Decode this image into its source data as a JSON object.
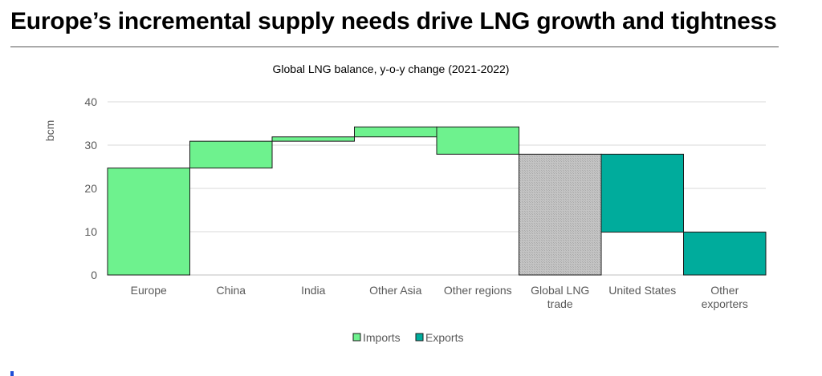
{
  "page": {
    "title": "Europe’s incremental supply needs drive LNG growth and tightness"
  },
  "chart_data": {
    "type": "waterfall",
    "title": "Global LNG balance, y-o-y change (2021-2022)",
    "ylabel": "bcm",
    "xlabel": "",
    "ylim": [
      0,
      40
    ],
    "yticks": [
      0,
      10,
      20,
      30,
      40
    ],
    "grid": true,
    "legend_position": "bottom-center",
    "categories": [
      {
        "label": [
          "Europe"
        ],
        "kind": "increase",
        "series": "Imports",
        "value": 24.7,
        "base": 0
      },
      {
        "label": [
          "China"
        ],
        "kind": "increase",
        "series": "Imports",
        "value": 6.2,
        "base": 24.7
      },
      {
        "label": [
          "India"
        ],
        "kind": "increase",
        "series": "Imports",
        "value": 1.0,
        "base": 30.9
      },
      {
        "label": [
          "Other Asia"
        ],
        "kind": "increase",
        "series": "Imports",
        "value": 2.3,
        "base": 31.9
      },
      {
        "label": [
          "Other regions"
        ],
        "kind": "decrease",
        "series": "Imports",
        "value": -6.3,
        "base": 34.2
      },
      {
        "label": [
          "Global LNG",
          "trade"
        ],
        "kind": "total",
        "series": "Total",
        "value": 27.9,
        "base": 0
      },
      {
        "label": [
          "United States"
        ],
        "kind": "increase",
        "series": "Exports",
        "value": 18.0,
        "base": 9.9
      },
      {
        "label": [
          "Other",
          "exporters"
        ],
        "kind": "increase",
        "series": "Exports",
        "value": 9.9,
        "base": 0
      }
    ],
    "legend": [
      {
        "name": "Imports",
        "color": "#6ef28e"
      },
      {
        "name": "Exports",
        "color": "#00ac9c"
      }
    ],
    "colors": {
      "imports": "#6ef28e",
      "exports": "#00ac9c",
      "total": "#bfbfbf",
      "grid": "#d9d9d9",
      "axis_text": "#595959"
    }
  }
}
